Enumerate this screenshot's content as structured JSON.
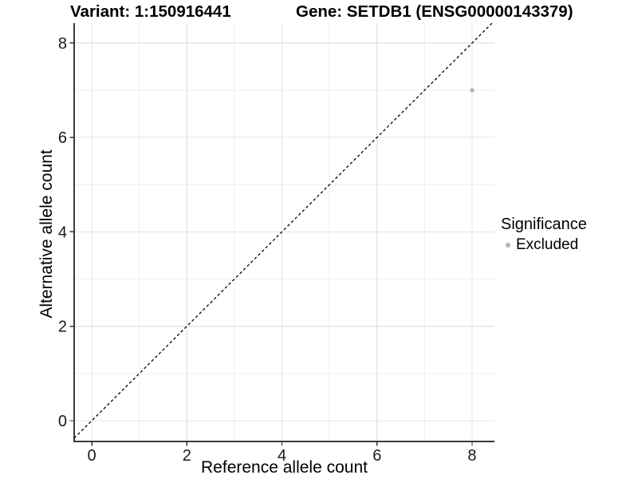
{
  "chart_data": {
    "type": "scatter",
    "title_left": "Variant: 1:150916441",
    "title_right": "Gene: SETDB1 (ENSG00000143379)",
    "xlabel": "Reference allele count",
    "ylabel": "Alternative allele count",
    "xlim": [
      -0.37,
      8.47
    ],
    "ylim": [
      -0.44,
      8.42
    ],
    "x_ticks": [
      0,
      2,
      4,
      6,
      8
    ],
    "y_ticks": [
      0,
      2,
      4,
      6,
      8
    ],
    "x_minor_gridlines": [
      1,
      3,
      5,
      7
    ],
    "y_minor_gridlines": [
      1,
      3,
      5,
      7
    ],
    "grid": "on",
    "identity_line": {
      "slope": 1,
      "intercept": 0,
      "style": "dashed",
      "color": "#000000"
    },
    "series": [
      {
        "name": "Excluded",
        "color": "#b3b3b3",
        "points": [
          {
            "x": 8,
            "y": 7
          }
        ]
      }
    ],
    "legend": {
      "title": "Significance",
      "position": "right",
      "items": [
        {
          "label": "Excluded",
          "color": "#b3b3b3",
          "marker": "circle"
        }
      ]
    }
  },
  "colors": {
    "background": "#ffffff",
    "axis_line": "#3a3a3a",
    "grid_major": "#e4e4e4",
    "grid_minor": "#efefef",
    "tick_mark": "#333333",
    "tick_text": "#1a1a1a",
    "title_text": "#000000",
    "point": "#b3b3b3"
  }
}
